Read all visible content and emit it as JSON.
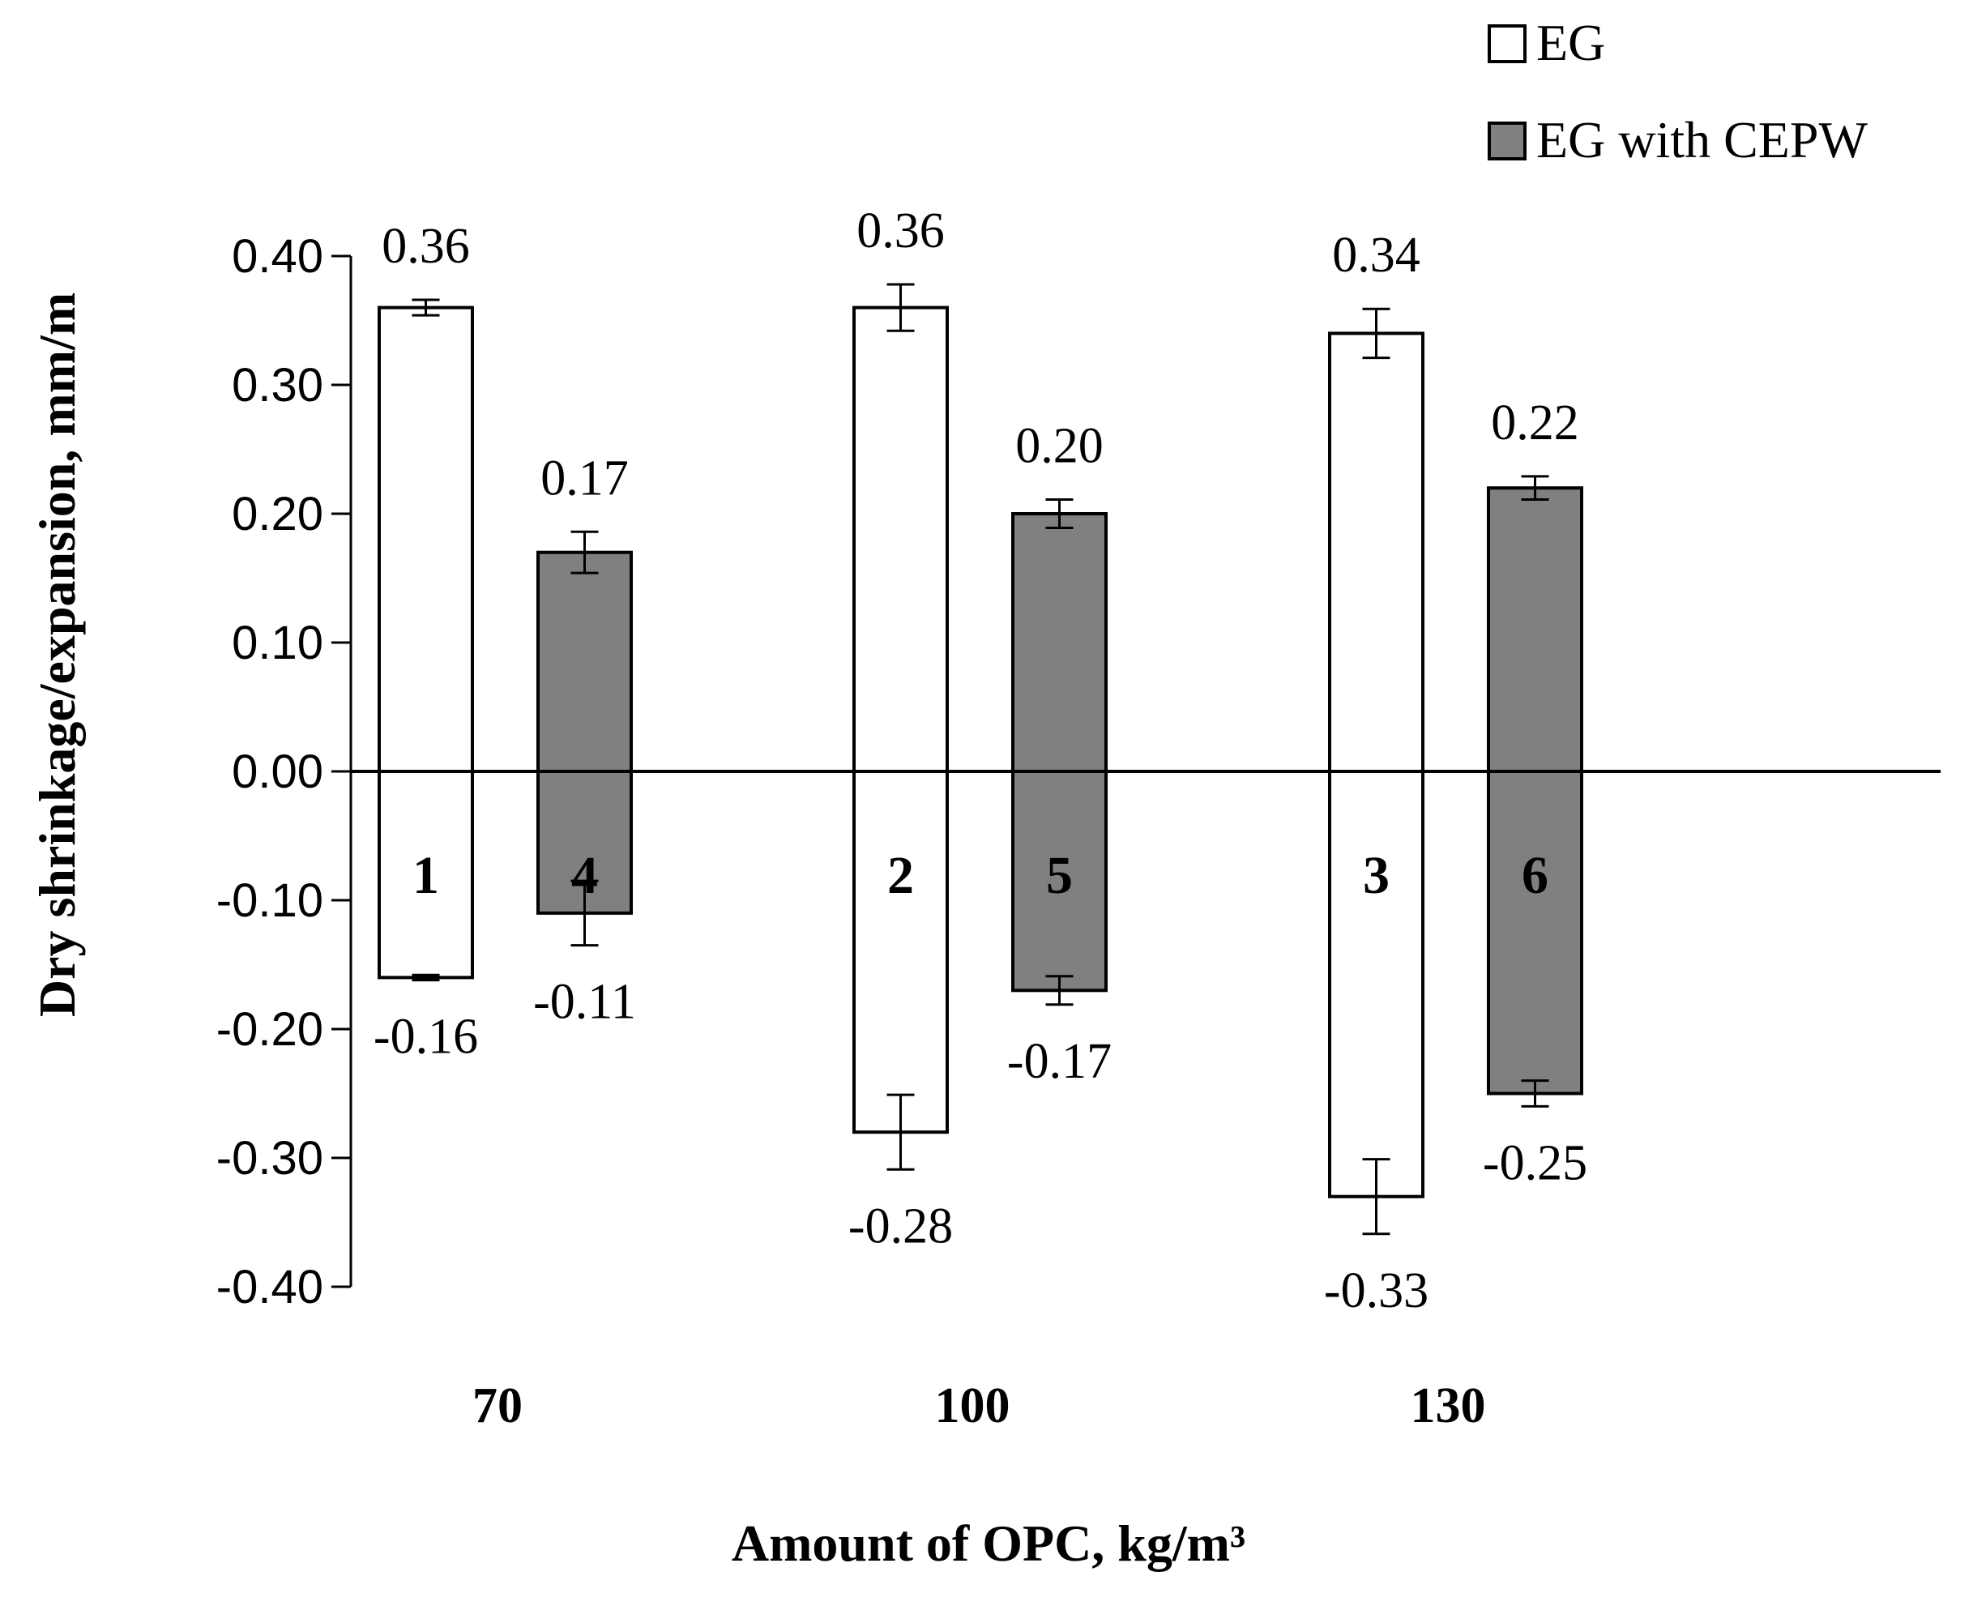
{
  "chart_data": {
    "type": "bar",
    "title": "",
    "xlabel": "Amount of OPC, kg/m³",
    "ylabel": "Dry shrinkage/expansion, mm/m",
    "ylim": [
      -0.4,
      0.4
    ],
    "yticks": [
      0.4,
      0.3,
      0.2,
      0.1,
      0.0,
      -0.1,
      -0.2,
      -0.3,
      -0.4
    ],
    "ytick_labels": [
      "0.40",
      "0.30",
      "0.20",
      "0.10",
      "0.00",
      "-0.10",
      "-0.20",
      "-0.30",
      "-0.40"
    ],
    "categories": [
      "70",
      "100",
      "130"
    ],
    "legend_position": "top-right",
    "series": [
      {
        "name": "EG",
        "color": "#ffffff",
        "expansion": [
          0.36,
          0.36,
          0.34
        ],
        "expansion_labels": [
          "0.36",
          "0.36",
          "0.34"
        ],
        "expansion_error": [
          0.006,
          0.018,
          0.019
        ],
        "shrinkage": [
          -0.16,
          -0.28,
          -0.33
        ],
        "shrinkage_labels": [
          "-0.16",
          "-0.28",
          "-0.33"
        ],
        "shrinkage_error": [
          0.002,
          0.029,
          0.029
        ],
        "bar_numbers": [
          "1",
          "2",
          "3"
        ]
      },
      {
        "name": "EG with CEPW",
        "color": "#808080",
        "expansion": [
          0.17,
          0.2,
          0.22
        ],
        "expansion_labels": [
          "0.17",
          "0.20",
          "0.22"
        ],
        "expansion_error": [
          0.016,
          0.011,
          0.009
        ],
        "shrinkage": [
          -0.11,
          -0.17,
          -0.25
        ],
        "shrinkage_labels": [
          "-0.11",
          "-0.17",
          "-0.25"
        ],
        "shrinkage_error": [
          0.025,
          0.011,
          0.01
        ],
        "bar_numbers": [
          "4",
          "5",
          "6"
        ]
      }
    ]
  }
}
